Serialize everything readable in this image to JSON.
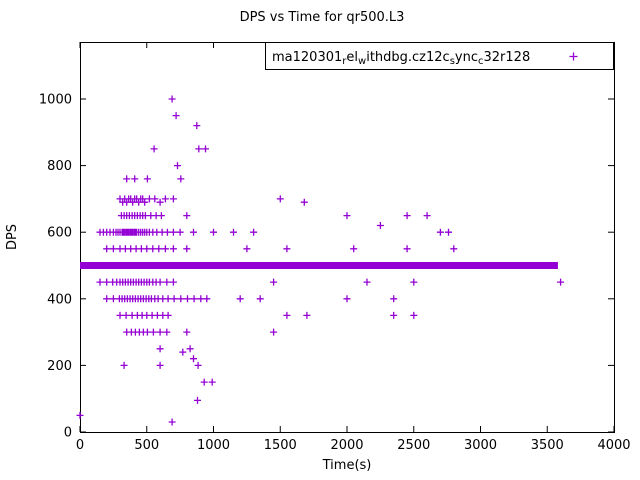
{
  "chart_data": {
    "type": "scatter",
    "title": "DPS vs Time for qr500.L3",
    "xlabel": "Time(s)",
    "ylabel": "DPS",
    "xlim": [
      0,
      4000
    ],
    "ylim": [
      0,
      1170
    ],
    "xticks": [
      0,
      500,
      1000,
      1500,
      2000,
      2500,
      3000,
      3500,
      4000
    ],
    "yticks": [
      0,
      200,
      400,
      600,
      800,
      1000
    ],
    "grid": false,
    "marker": "plus",
    "marker_color": "#9400D3",
    "legend": {
      "position": "top-right-inside",
      "label_plain": "ma120301_rel_withdbg.cz12c_sync_c32r128",
      "label_segments": [
        {
          "text": "ma120301",
          "sub": false
        },
        {
          "text": "r",
          "sub": true
        },
        {
          "text": "el",
          "sub": false
        },
        {
          "text": "w",
          "sub": true
        },
        {
          "text": "ithdbg.cz12c",
          "sub": false
        },
        {
          "text": "s",
          "sub": true
        },
        {
          "text": "ync",
          "sub": false
        },
        {
          "text": "c",
          "sub": true
        },
        {
          "text": "32r128",
          "sub": false
        }
      ]
    },
    "band": {
      "y": 500,
      "x_start": 0,
      "x_end": 3580,
      "thickness_px": 7
    },
    "series": [
      {
        "name": "ma120301_rel_withdbg.cz12c_sync_c32r128",
        "points": [
          [
            690,
            1000
          ],
          [
            720,
            950
          ],
          [
            875,
            920
          ],
          [
            555,
            850
          ],
          [
            890,
            850
          ],
          [
            940,
            850
          ],
          [
            730,
            800
          ],
          [
            350,
            760
          ],
          [
            410,
            760
          ],
          [
            505,
            760
          ],
          [
            755,
            760
          ],
          [
            300,
            700
          ],
          [
            320,
            690
          ],
          [
            335,
            700
          ],
          [
            350,
            690
          ],
          [
            365,
            700
          ],
          [
            380,
            700
          ],
          [
            395,
            690
          ],
          [
            410,
            700
          ],
          [
            425,
            700
          ],
          [
            440,
            690
          ],
          [
            455,
            700
          ],
          [
            470,
            700
          ],
          [
            485,
            690
          ],
          [
            520,
            700
          ],
          [
            560,
            700
          ],
          [
            600,
            690
          ],
          [
            640,
            700
          ],
          [
            700,
            700
          ],
          [
            1500,
            700
          ],
          [
            1680,
            690
          ],
          [
            310,
            650
          ],
          [
            330,
            650
          ],
          [
            350,
            650
          ],
          [
            370,
            650
          ],
          [
            390,
            650
          ],
          [
            410,
            650
          ],
          [
            430,
            650
          ],
          [
            450,
            650
          ],
          [
            470,
            650
          ],
          [
            490,
            650
          ],
          [
            530,
            650
          ],
          [
            570,
            650
          ],
          [
            610,
            650
          ],
          [
            800,
            650
          ],
          [
            2000,
            650
          ],
          [
            2450,
            650
          ],
          [
            2600,
            650
          ],
          [
            2250,
            620
          ],
          [
            150,
            600
          ],
          [
            175,
            600
          ],
          [
            200,
            600
          ],
          [
            225,
            600
          ],
          [
            250,
            600
          ],
          [
            270,
            600
          ],
          [
            285,
            600
          ],
          [
            300,
            600
          ],
          [
            315,
            600
          ],
          [
            325,
            600
          ],
          [
            335,
            600
          ],
          [
            345,
            600
          ],
          [
            355,
            600
          ],
          [
            365,
            600
          ],
          [
            375,
            600
          ],
          [
            385,
            600
          ],
          [
            395,
            600
          ],
          [
            405,
            600
          ],
          [
            415,
            600
          ],
          [
            425,
            600
          ],
          [
            440,
            600
          ],
          [
            455,
            600
          ],
          [
            470,
            600
          ],
          [
            485,
            600
          ],
          [
            500,
            600
          ],
          [
            520,
            600
          ],
          [
            545,
            600
          ],
          [
            575,
            600
          ],
          [
            615,
            600
          ],
          [
            655,
            600
          ],
          [
            700,
            600
          ],
          [
            750,
            600
          ],
          [
            850,
            600
          ],
          [
            1000,
            600
          ],
          [
            1150,
            600
          ],
          [
            1300,
            600
          ],
          [
            2700,
            600
          ],
          [
            2760,
            600
          ],
          [
            200,
            550
          ],
          [
            250,
            550
          ],
          [
            300,
            550
          ],
          [
            340,
            550
          ],
          [
            380,
            550
          ],
          [
            420,
            550
          ],
          [
            460,
            550
          ],
          [
            500,
            550
          ],
          [
            545,
            550
          ],
          [
            590,
            550
          ],
          [
            640,
            550
          ],
          [
            700,
            550
          ],
          [
            800,
            550
          ],
          [
            1250,
            550
          ],
          [
            1550,
            550
          ],
          [
            2050,
            550
          ],
          [
            2450,
            550
          ],
          [
            2800,
            550
          ],
          [
            150,
            450
          ],
          [
            200,
            450
          ],
          [
            245,
            450
          ],
          [
            275,
            450
          ],
          [
            300,
            450
          ],
          [
            320,
            450
          ],
          [
            340,
            450
          ],
          [
            360,
            450
          ],
          [
            380,
            450
          ],
          [
            400,
            450
          ],
          [
            420,
            450
          ],
          [
            440,
            450
          ],
          [
            460,
            450
          ],
          [
            480,
            450
          ],
          [
            500,
            450
          ],
          [
            520,
            450
          ],
          [
            545,
            450
          ],
          [
            570,
            450
          ],
          [
            600,
            450
          ],
          [
            650,
            450
          ],
          [
            700,
            450
          ],
          [
            1450,
            450
          ],
          [
            2150,
            450
          ],
          [
            2500,
            450
          ],
          [
            3600,
            450
          ],
          [
            200,
            400
          ],
          [
            250,
            400
          ],
          [
            295,
            400
          ],
          [
            315,
            400
          ],
          [
            335,
            400
          ],
          [
            355,
            400
          ],
          [
            375,
            400
          ],
          [
            395,
            400
          ],
          [
            415,
            400
          ],
          [
            435,
            400
          ],
          [
            455,
            400
          ],
          [
            475,
            400
          ],
          [
            495,
            400
          ],
          [
            515,
            400
          ],
          [
            535,
            400
          ],
          [
            560,
            400
          ],
          [
            585,
            400
          ],
          [
            620,
            400
          ],
          [
            660,
            400
          ],
          [
            705,
            400
          ],
          [
            755,
            400
          ],
          [
            805,
            400
          ],
          [
            855,
            400
          ],
          [
            905,
            400
          ],
          [
            950,
            400
          ],
          [
            1200,
            400
          ],
          [
            1350,
            400
          ],
          [
            2000,
            400
          ],
          [
            2350,
            400
          ],
          [
            300,
            350
          ],
          [
            345,
            350
          ],
          [
            390,
            350
          ],
          [
            430,
            350
          ],
          [
            465,
            350
          ],
          [
            500,
            350
          ],
          [
            540,
            350
          ],
          [
            580,
            350
          ],
          [
            620,
            350
          ],
          [
            660,
            350
          ],
          [
            1550,
            350
          ],
          [
            1700,
            350
          ],
          [
            2350,
            350
          ],
          [
            2500,
            350
          ],
          [
            350,
            300
          ],
          [
            385,
            300
          ],
          [
            415,
            300
          ],
          [
            445,
            300
          ],
          [
            475,
            300
          ],
          [
            505,
            300
          ],
          [
            550,
            300
          ],
          [
            600,
            300
          ],
          [
            650,
            300
          ],
          [
            800,
            300
          ],
          [
            1450,
            300
          ],
          [
            600,
            250
          ],
          [
            770,
            240
          ],
          [
            825,
            250
          ],
          [
            330,
            200
          ],
          [
            600,
            200
          ],
          [
            850,
            220
          ],
          [
            885,
            200
          ],
          [
            930,
            150
          ],
          [
            990,
            150
          ],
          [
            880,
            95
          ],
          [
            0,
            50
          ],
          [
            690,
            30
          ]
        ]
      }
    ]
  }
}
